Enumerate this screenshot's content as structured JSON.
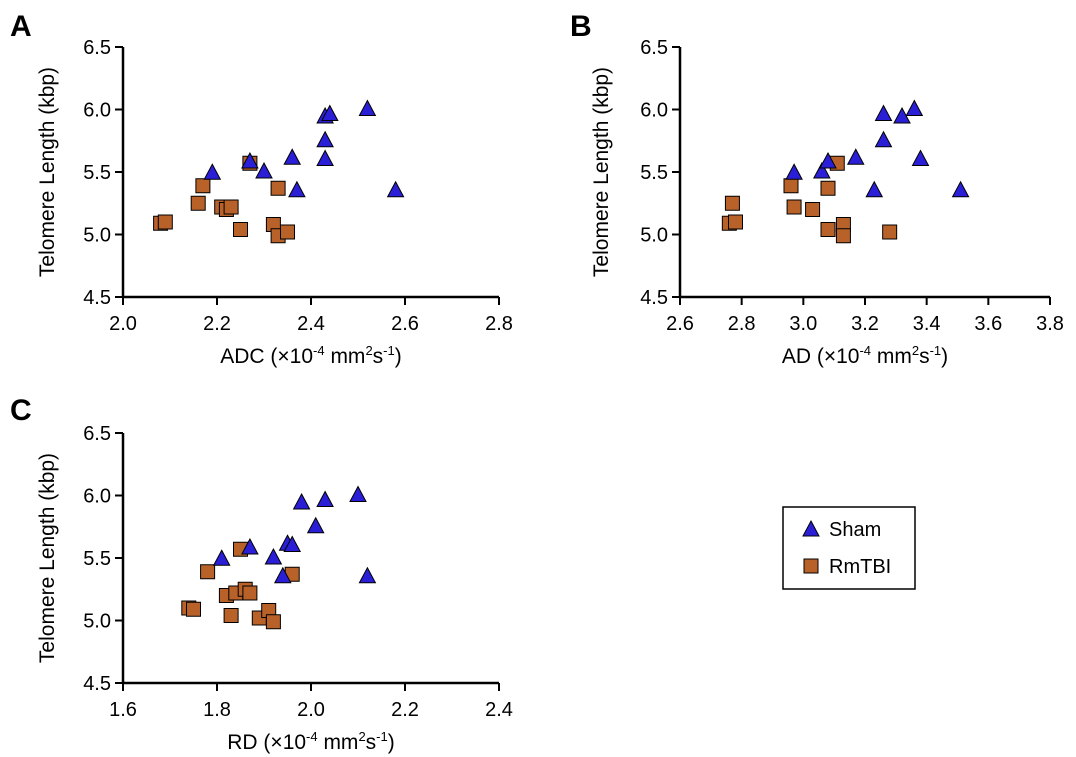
{
  "chart_data": [
    {
      "type": "scatter",
      "panel": "A",
      "xlabel": {
        "base": "ADC (×10",
        "sup1": "-4",
        "mid1": " mm",
        "sup2": "2",
        "mid2": "s",
        "sup3": "-1",
        "end": ")"
      },
      "ylabel": "Telomere Length (kbp)",
      "xlim": [
        2.0,
        2.8
      ],
      "ylim": [
        4.5,
        6.5
      ],
      "xticks": [
        "2.0",
        "2.2",
        "2.4",
        "2.6",
        "2.8"
      ],
      "yticks": [
        "4.5",
        "5.0",
        "5.5",
        "6.0",
        "6.5"
      ],
      "series": [
        {
          "name": "Sham",
          "marker": "triangle",
          "color": "#2a1fd6",
          "points": [
            [
              2.19,
              5.49
            ],
            [
              2.27,
              5.58
            ],
            [
              2.3,
              5.5
            ],
            [
              2.36,
              5.61
            ],
            [
              2.37,
              5.35
            ],
            [
              2.43,
              5.6
            ],
            [
              2.43,
              5.75
            ],
            [
              2.43,
              5.94
            ],
            [
              2.44,
              5.96
            ],
            [
              2.52,
              6.0
            ],
            [
              2.58,
              5.35
            ]
          ]
        },
        {
          "name": "RmTBI",
          "marker": "square",
          "color": "#b8622a",
          "points": [
            [
              2.08,
              5.09
            ],
            [
              2.09,
              5.1
            ],
            [
              2.16,
              5.25
            ],
            [
              2.17,
              5.39
            ],
            [
              2.21,
              5.22
            ],
            [
              2.22,
              5.2
            ],
            [
              2.23,
              5.22
            ],
            [
              2.25,
              5.04
            ],
            [
              2.27,
              5.57
            ],
            [
              2.32,
              5.08
            ],
            [
              2.33,
              5.37
            ],
            [
              2.33,
              4.99
            ],
            [
              2.35,
              5.02
            ]
          ]
        }
      ]
    },
    {
      "type": "scatter",
      "panel": "B",
      "xlabel": {
        "base": "AD (×10",
        "sup1": "-4",
        "mid1": " mm",
        "sup2": "2",
        "mid2": "s",
        "sup3": "-1",
        "end": ")"
      },
      "ylabel": "Telomere Length (kbp)",
      "xlim": [
        2.6,
        3.8
      ],
      "ylim": [
        4.5,
        6.5
      ],
      "xticks": [
        "2.6",
        "2.8",
        "3.0",
        "3.2",
        "3.4",
        "3.6",
        "3.8"
      ],
      "yticks": [
        "4.5",
        "5.0",
        "5.5",
        "6.0",
        "6.5"
      ],
      "series": [
        {
          "name": "Sham",
          "marker": "triangle",
          "color": "#2a1fd6",
          "points": [
            [
              2.97,
              5.49
            ],
            [
              3.06,
              5.5
            ],
            [
              3.08,
              5.58
            ],
            [
              3.17,
              5.61
            ],
            [
              3.23,
              5.35
            ],
            [
              3.26,
              5.75
            ],
            [
              3.26,
              5.96
            ],
            [
              3.32,
              5.94
            ],
            [
              3.36,
              6.0
            ],
            [
              3.38,
              5.6
            ],
            [
              3.51,
              5.35
            ]
          ]
        },
        {
          "name": "RmTBI",
          "marker": "square",
          "color": "#b8622a",
          "points": [
            [
              2.77,
              5.25
            ],
            [
              2.76,
              5.09
            ],
            [
              2.78,
              5.1
            ],
            [
              2.96,
              5.39
            ],
            [
              2.97,
              5.22
            ],
            [
              3.03,
              5.2
            ],
            [
              3.08,
              5.37
            ],
            [
              3.08,
              5.04
            ],
            [
              3.11,
              5.57
            ],
            [
              3.13,
              5.08
            ],
            [
              3.13,
              4.99
            ],
            [
              3.28,
              5.02
            ]
          ]
        }
      ]
    },
    {
      "type": "scatter",
      "panel": "C",
      "xlabel": {
        "base": "RD (×10",
        "sup1": "-4",
        "mid1": " mm",
        "sup2": "2",
        "mid2": "s",
        "sup3": "-1",
        "end": ")"
      },
      "ylabel": "Telomere Length (kbp)",
      "xlim": [
        1.6,
        2.4
      ],
      "ylim": [
        4.5,
        6.5
      ],
      "xticks": [
        "1.6",
        "1.8",
        "2.0",
        "2.2",
        "2.4"
      ],
      "yticks": [
        "4.5",
        "5.0",
        "5.5",
        "6.0",
        "6.5"
      ],
      "series": [
        {
          "name": "Sham",
          "marker": "triangle",
          "color": "#2a1fd6",
          "points": [
            [
              1.81,
              5.49
            ],
            [
              1.87,
              5.58
            ],
            [
              1.92,
              5.5
            ],
            [
              1.94,
              5.35
            ],
            [
              1.95,
              5.61
            ],
            [
              1.96,
              5.6
            ],
            [
              1.98,
              5.94
            ],
            [
              2.01,
              5.75
            ],
            [
              2.03,
              5.96
            ],
            [
              2.1,
              6.0
            ],
            [
              2.12,
              5.35
            ]
          ]
        },
        {
          "name": "RmTBI",
          "marker": "square",
          "color": "#b8622a",
          "points": [
            [
              1.74,
              5.1
            ],
            [
              1.75,
              5.09
            ],
            [
              1.78,
              5.39
            ],
            [
              1.82,
              5.2
            ],
            [
              1.83,
              5.04
            ],
            [
              1.84,
              5.22
            ],
            [
              1.85,
              5.57
            ],
            [
              1.86,
              5.25
            ],
            [
              1.87,
              5.22
            ],
            [
              1.89,
              5.02
            ],
            [
              1.91,
              5.08
            ],
            [
              1.92,
              4.99
            ],
            [
              1.96,
              5.37
            ]
          ]
        }
      ]
    }
  ],
  "legend": {
    "placement": "right of panel C",
    "items": [
      {
        "label": "Sham",
        "marker": "triangle",
        "color": "#2a1fd6"
      },
      {
        "label": "RmTBI",
        "marker": "square",
        "color": "#b8622a"
      }
    ]
  }
}
